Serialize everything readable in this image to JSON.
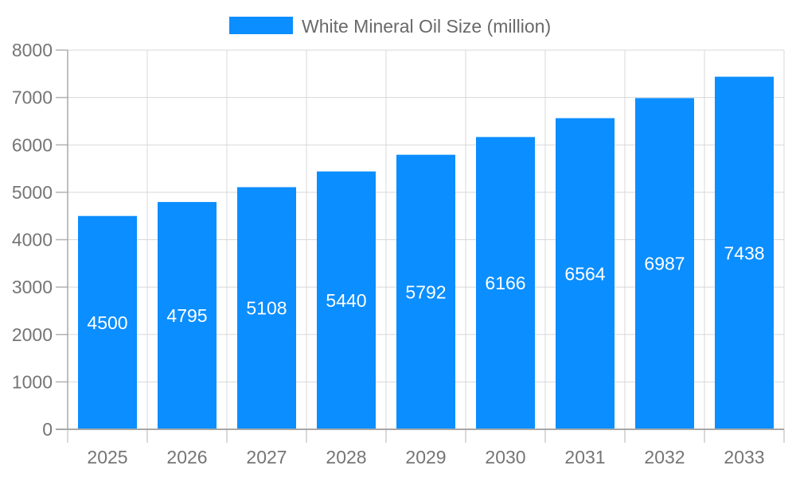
{
  "chart_data": {
    "type": "bar",
    "title": "White Mineral Oil Size (million)",
    "categories": [
      "2025",
      "2026",
      "2027",
      "2028",
      "2029",
      "2030",
      "2031",
      "2032",
      "2033"
    ],
    "values": [
      4500,
      4795,
      5108,
      5440,
      5792,
      6166,
      6564,
      6987,
      7438
    ],
    "yticks": [
      0,
      1000,
      2000,
      3000,
      4000,
      5000,
      6000,
      7000,
      8000
    ],
    "ylim": [
      0,
      8000
    ],
    "xlabel": "",
    "ylabel": "",
    "grid": true,
    "legend_position": "top-center",
    "colors": {
      "bar": "#0b8eff",
      "grid": "#d8d8d8",
      "axis": "#a8a8a8",
      "y_tick": "#b3b3b3",
      "x_tick": "#cccccc",
      "axis_label": "#757575",
      "legend_text": "#696969",
      "value_label": "#ffffff",
      "background": "#ffffff"
    }
  }
}
